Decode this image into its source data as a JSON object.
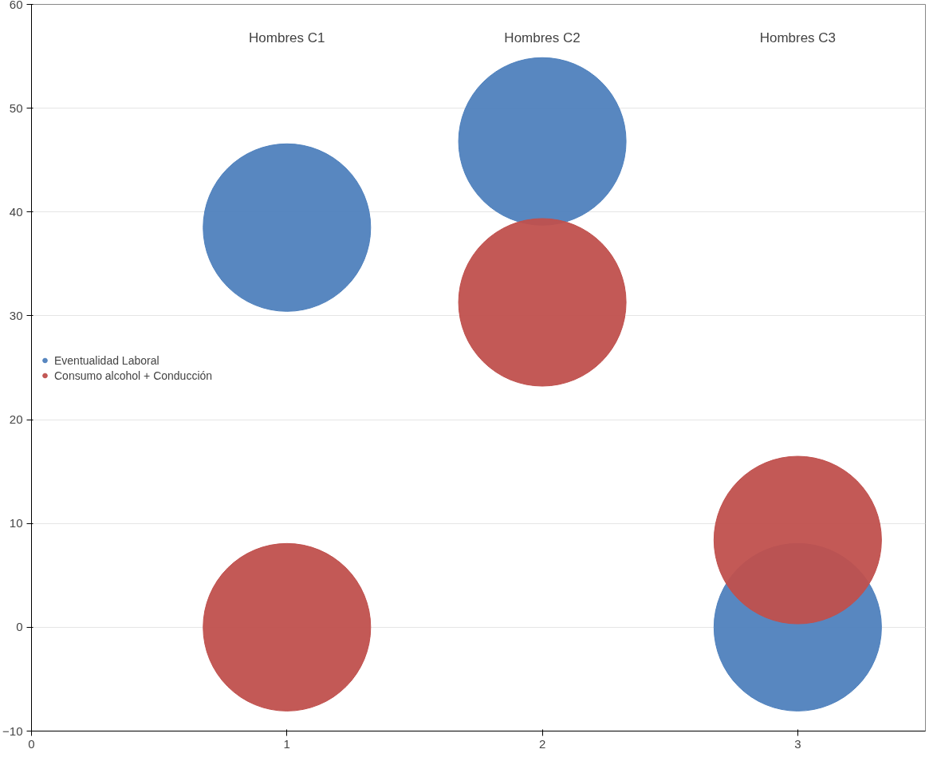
{
  "chart_data": {
    "type": "bubble",
    "x": [
      1,
      2,
      3
    ],
    "series": [
      {
        "name": "Eventualidad Laboral",
        "color": "#4f81bd",
        "values": [
          38.5,
          46.8,
          0
        ],
        "sizes": [
          1,
          1,
          1
        ]
      },
      {
        "name": "Consumo alcohol + Conducción",
        "color": "#c0504d",
        "values": [
          0,
          31.3,
          8.4
        ],
        "sizes": [
          1,
          1,
          1
        ]
      }
    ],
    "annotations": [
      "Hombres C1",
      "Hombres C2",
      "Hombres C3"
    ],
    "xlim": [
      0,
      3.5
    ],
    "xticks": [
      0,
      1,
      2,
      3
    ],
    "ylim": [
      -10,
      60
    ],
    "yticks": [
      -10,
      0,
      10,
      20,
      30,
      40,
      50,
      60
    ],
    "grid": "y",
    "legend": "left"
  }
}
